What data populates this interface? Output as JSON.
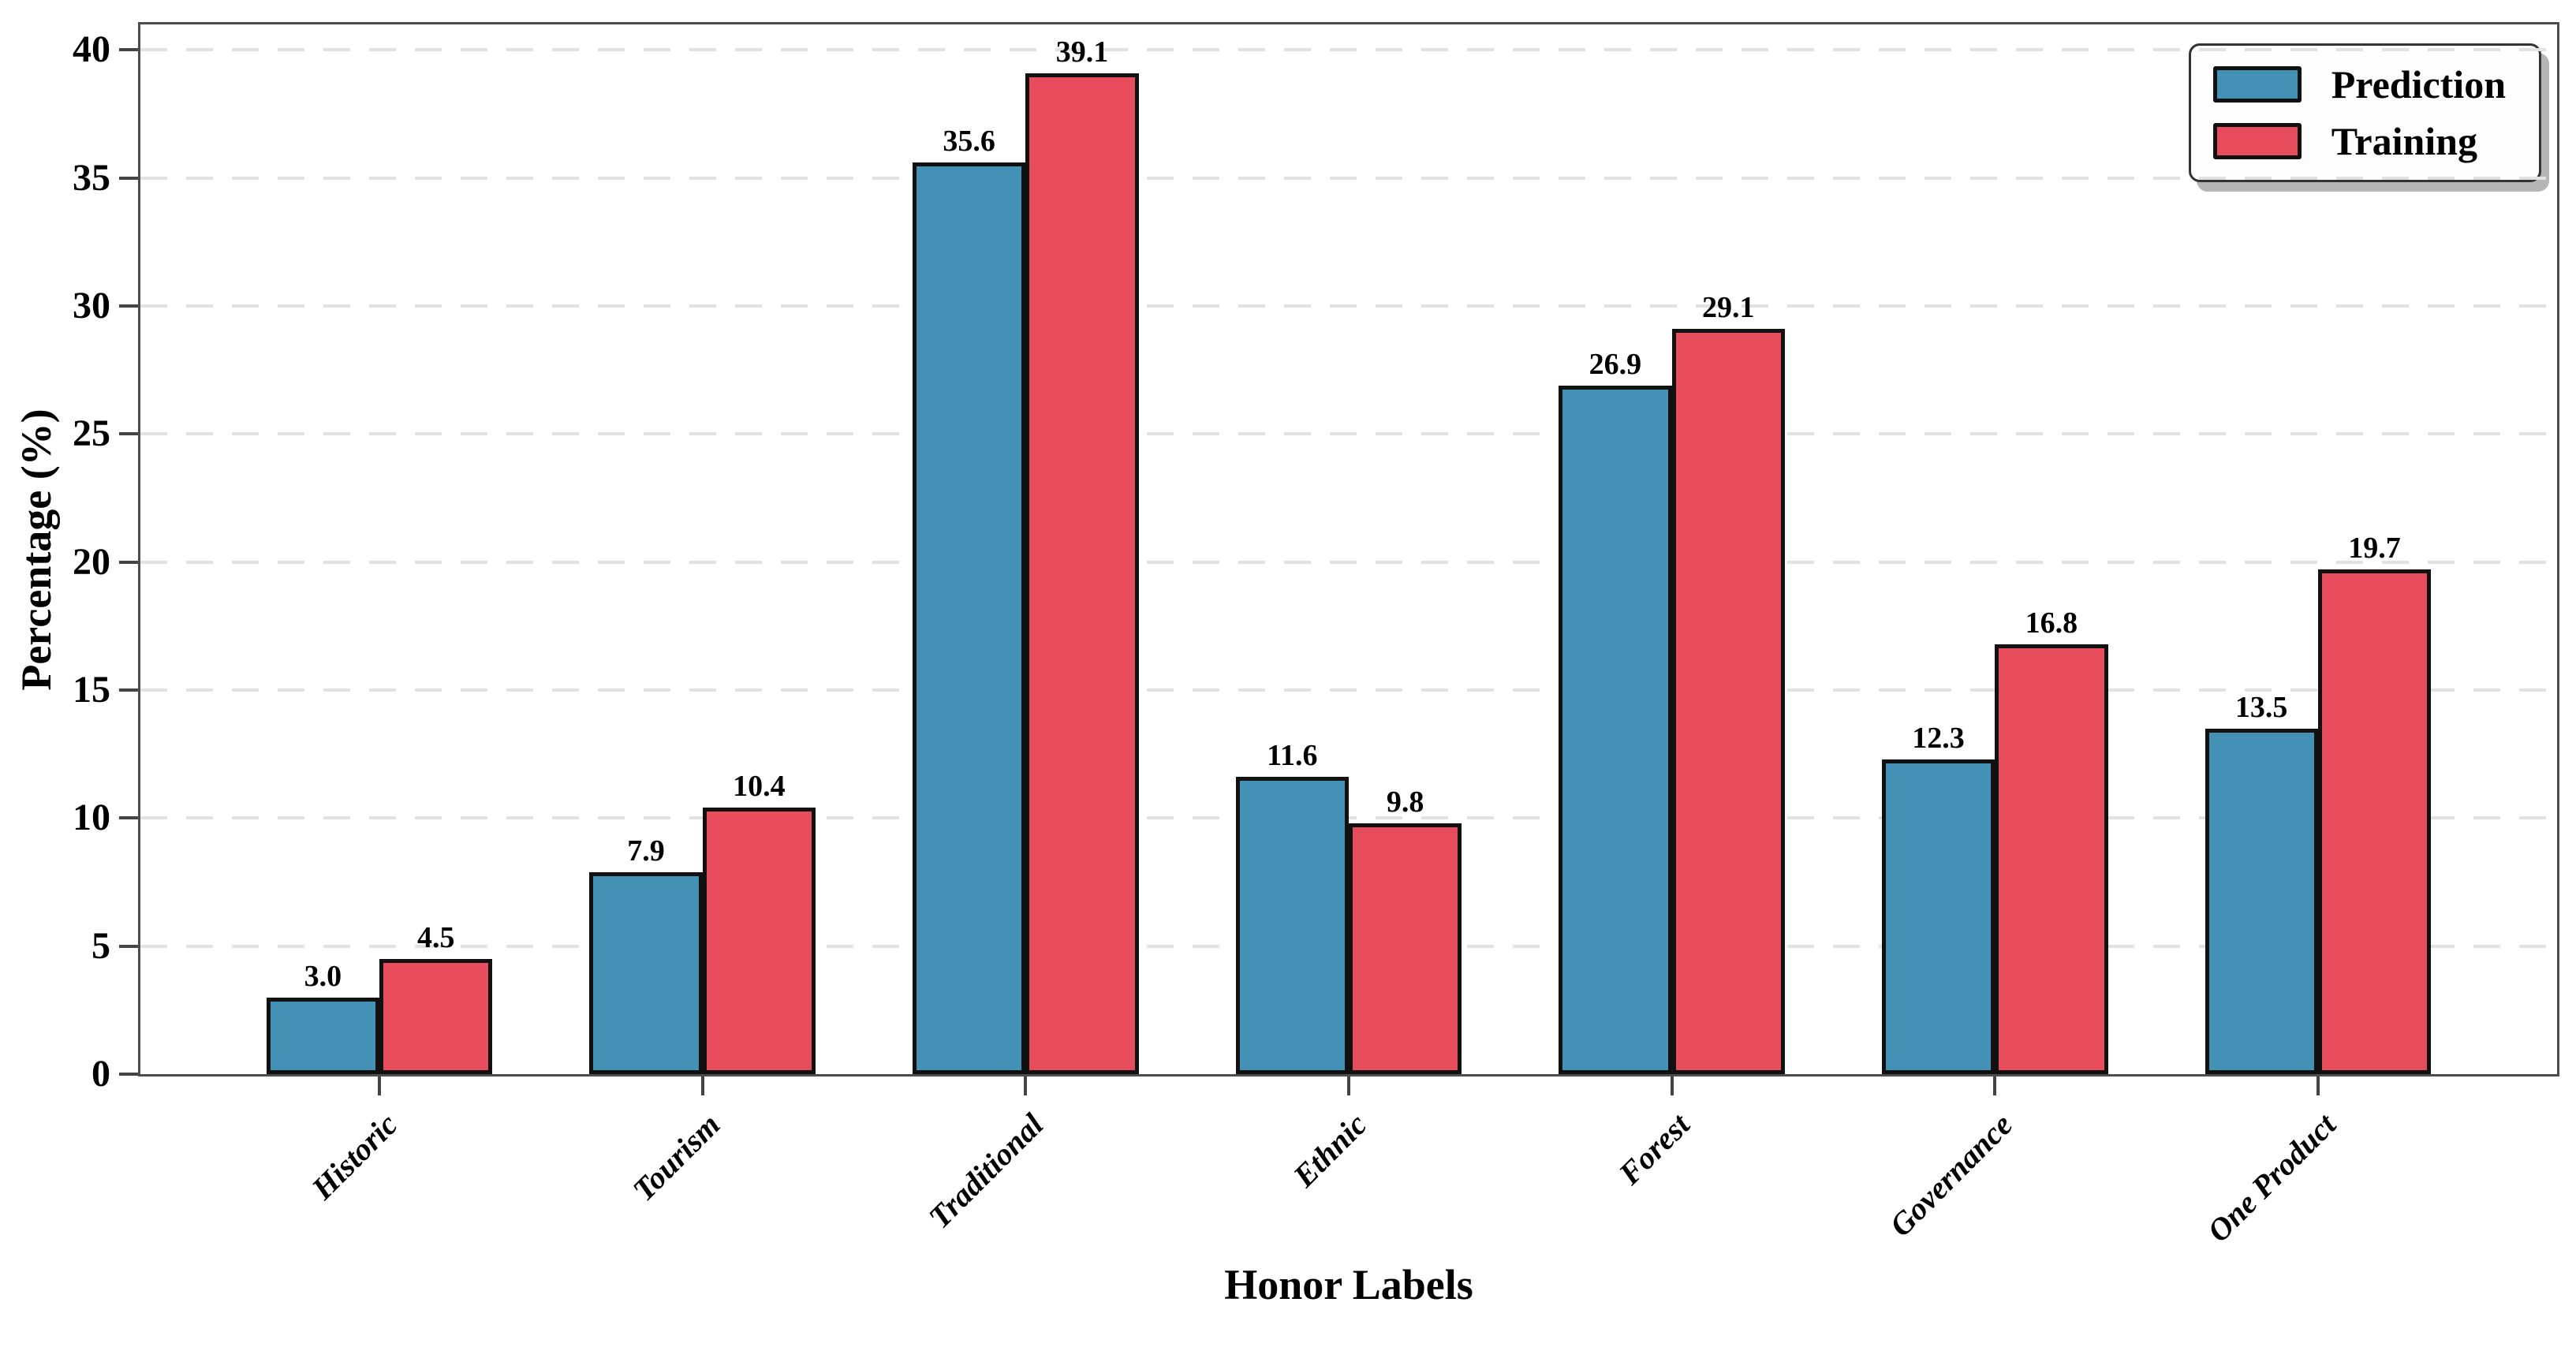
{
  "chart_data": {
    "type": "bar",
    "title": "",
    "xlabel": "Honor Labels",
    "ylabel": "Percentage (%)",
    "categories": [
      "Historic",
      "Tourism",
      "Traditional",
      "Ethnic",
      "Forest",
      "Governance",
      "One Product"
    ],
    "series": [
      {
        "name": "Prediction",
        "color": "#4391B5",
        "values": [
          3.0,
          7.9,
          35.6,
          11.6,
          26.9,
          12.3,
          13.5
        ]
      },
      {
        "name": "Training",
        "color": "#E64C5B",
        "values": [
          4.5,
          10.4,
          39.1,
          9.8,
          29.1,
          16.8,
          19.7
        ]
      }
    ],
    "value_labels": {
      "Prediction": [
        "3.0",
        "7.9",
        "35.6",
        "11.6",
        "26.9",
        "12.3",
        "13.5"
      ],
      "Training": [
        "4.5",
        "10.4",
        "39.1",
        "9.8",
        "29.1",
        "16.8",
        "19.7"
      ]
    },
    "ylim": [
      0,
      41
    ],
    "yticks": [
      0,
      5,
      10,
      15,
      20,
      25,
      30,
      35,
      40
    ],
    "grid": "horizontal-dashed",
    "legend_position": "upper-right",
    "colors": {
      "bar_edge": "#111111",
      "spine": "#4d4d4d",
      "gridline": "#e2e2e2",
      "tick": "#444444",
      "background": "#ffffff"
    }
  }
}
